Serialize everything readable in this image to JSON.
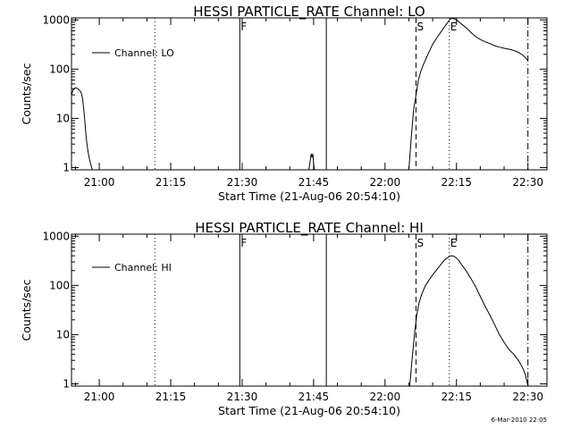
{
  "footer": {
    "timestamp": "6-Mar-2010 22:05"
  },
  "chart_data": [
    {
      "type": "line",
      "title": "HESSI PARTICLE_RATE Channel: LO",
      "xlabel": "Start Time (21-Aug-06 20:54:10)",
      "ylabel": "Counts/sec",
      "y_scale": "log",
      "ylim": [
        0.9,
        1100
      ],
      "xlim": [
        "20:54:10",
        "22:34:00"
      ],
      "grid": false,
      "legend_position": "upper-left",
      "x_ticks": [
        "21:00",
        "21:15",
        "21:30",
        "21:45",
        "22:00",
        "22:15",
        "22:30"
      ],
      "y_ticks": [
        "1",
        "10",
        "100",
        "1000"
      ],
      "event_markers": [
        {
          "label": "F",
          "time": "21:29:30",
          "style": "solid"
        },
        {
          "label": "",
          "time": "21:47:40",
          "style": "solid"
        },
        {
          "label": "S",
          "time": "22:06:30",
          "style": "dashed"
        },
        {
          "label": "E",
          "time": "22:13:30",
          "style": "dotted"
        },
        {
          "label": "",
          "time": "21:11:40",
          "style": "dotted"
        },
        {
          "label": "",
          "time": "22:30:00",
          "style": "dashdot"
        }
      ],
      "series": [
        {
          "name": "Channel: LO",
          "x": [
            "20:54:10",
            "20:54:30",
            "20:55:00",
            "20:55:30",
            "20:56:00",
            "20:56:15",
            "20:56:30",
            "20:56:45",
            "20:57:00",
            "20:57:10",
            "20:57:25",
            "20:57:40",
            "20:57:55",
            "20:58:10",
            "20:58:25",
            "20:58:35",
            "null",
            "21:44:00",
            "21:44:15",
            "21:44:30",
            "21:44:40",
            "21:44:50",
            "21:45:00",
            "21:45:10",
            "null",
            "22:05:00",
            "22:05:30",
            "22:06:00",
            "22:06:30",
            "22:07:00",
            "22:07:30",
            "22:08:00",
            "22:09:00",
            "22:10:00",
            "22:11:00",
            "22:12:00",
            "22:13:00",
            "22:13:30",
            "22:14:00",
            "22:14:30",
            "22:15:00",
            "22:15:30",
            "22:16:00",
            "22:17:00",
            "22:18:00",
            "22:19:00",
            "22:20:00",
            "22:21:00",
            "22:22:00",
            "22:23:00",
            "22:24:00",
            "22:25:00",
            "22:26:00",
            "22:27:00",
            "22:28:00",
            "22:29:00",
            "22:29:30",
            "22:30:00"
          ],
          "y": [
            30,
            38,
            42,
            40,
            36,
            32,
            25,
            15,
            8,
            5,
            3,
            2,
            1.5,
            1.2,
            1,
            0.9,
            null,
            0.9,
            1.3,
            1.9,
            1.6,
            1.9,
            1.2,
            0.9,
            null,
            0.9,
            4,
            15,
            30,
            60,
            90,
            120,
            200,
            320,
            450,
            620,
            850,
            1000,
            1080,
            1060,
            1000,
            920,
            830,
            700,
            560,
            460,
            400,
            360,
            330,
            300,
            280,
            265,
            255,
            240,
            220,
            190,
            170,
            150
          ]
        }
      ]
    },
    {
      "type": "line",
      "title": "HESSI PARTICLE_RATE Channel: HI",
      "xlabel": "Start Time (21-Aug-06 20:54:10)",
      "ylabel": "Counts/sec",
      "y_scale": "log",
      "ylim": [
        0.9,
        1100
      ],
      "xlim": [
        "20:54:10",
        "22:34:00"
      ],
      "grid": false,
      "legend_position": "upper-left",
      "x_ticks": [
        "21:00",
        "21:15",
        "21:30",
        "21:45",
        "22:00",
        "22:15",
        "22:30"
      ],
      "y_ticks": [
        "1",
        "10",
        "100",
        "1000"
      ],
      "event_markers": [
        {
          "label": "F",
          "time": "21:29:30",
          "style": "solid"
        },
        {
          "label": "",
          "time": "21:47:40",
          "style": "solid"
        },
        {
          "label": "S",
          "time": "22:06:30",
          "style": "dashed"
        },
        {
          "label": "E",
          "time": "22:13:30",
          "style": "dotted"
        },
        {
          "label": "",
          "time": "21:11:40",
          "style": "dotted"
        },
        {
          "label": "",
          "time": "22:30:00",
          "style": "dashdot"
        }
      ],
      "series": [
        {
          "name": "Channel: HI",
          "x": [
            "22:05:10",
            "22:05:40",
            "22:06:10",
            "22:06:40",
            "22:07:10",
            "22:07:40",
            "22:08:30",
            "22:09:30",
            "22:10:30",
            "22:11:30",
            "22:12:30",
            "22:13:30",
            "22:14:00",
            "22:14:30",
            "22:15:00",
            "22:15:30",
            "22:16:00",
            "22:17:00",
            "22:18:00",
            "22:19:00",
            "22:20:00",
            "22:21:00",
            "22:22:00",
            "22:23:00",
            "22:24:00",
            "22:25:00",
            "22:26:00",
            "22:27:00",
            "22:28:00",
            "22:28:30",
            "22:29:00",
            "22:29:30",
            "22:30:00"
          ],
          "y": [
            0.9,
            3,
            10,
            25,
            45,
            65,
            100,
            140,
            190,
            250,
            330,
            390,
            400,
            390,
            360,
            320,
            270,
            200,
            140,
            95,
            60,
            38,
            25,
            16,
            10,
            7,
            5,
            4,
            3,
            2.5,
            2,
            1.5,
            0.9
          ]
        }
      ]
    }
  ]
}
